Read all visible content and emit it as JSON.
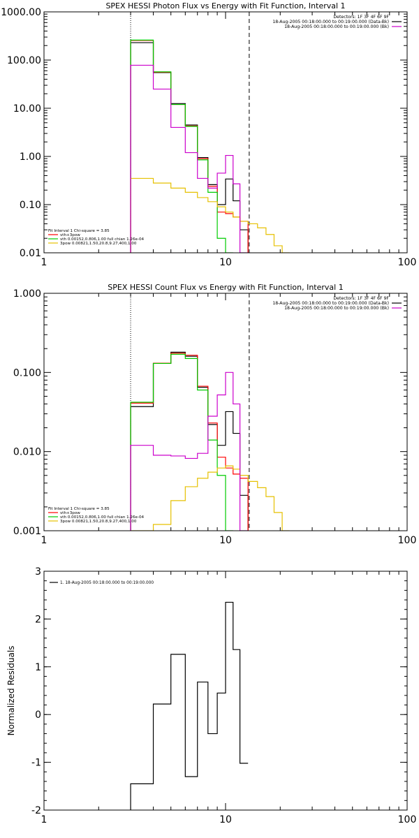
{
  "chart_data": [
    {
      "type": "line",
      "step": true,
      "title": "SPEX HESSI Photon Flux vs Energy with Fit Function, Interval 1",
      "xlabel": "",
      "ylabel": "",
      "x_scale": "log",
      "y_scale": "log",
      "xlim": [
        1,
        100
      ],
      "ylim": [
        0.01,
        1000
      ],
      "x_ticks": [
        1,
        10,
        100
      ],
      "x_tick_labels": [
        "1",
        "10",
        "100"
      ],
      "y_ticks": [
        0.01,
        0.1,
        1,
        10,
        100,
        1000
      ],
      "y_tick_labels": [
        "0.01",
        "0.10",
        "1.00",
        "10.00",
        "100.00",
        "1000.00"
      ],
      "edges": [
        3.0,
        4.0,
        5.0,
        6.0,
        7.0,
        8.0,
        9.0,
        10.0,
        11.0,
        12.0,
        13.3,
        15.0,
        16.7,
        18.5,
        20.5,
        22.5
      ],
      "vlines": [
        {
          "x": 3.0,
          "style": "dotted"
        },
        {
          "x": 13.5,
          "style": "dashed"
        }
      ],
      "legend_top_right": [
        {
          "text": "Detectors: 1F 3F 4F 6F 9F",
          "color": ""
        },
        {
          "text": "18-Aug-2005 00:18:00.000 to 00:19:00.000 (Data-Bk)",
          "color": "#000000"
        },
        {
          "text": "18-Aug-2005 00:18:00.000 to 00:19:00.000 (Bk)",
          "color": "#cc00cc"
        }
      ],
      "legend_bottom_left": [
        {
          "text": "Fit Interval 1    Chi-square = 3.85",
          "color": ""
        },
        {
          "text": "vth+3pow",
          "color": "#ff0000"
        },
        {
          "text": "vth 0.00152,0.806,1.00   full chian 1.26e-04",
          "color": "#00cc00"
        },
        {
          "text": "3pow 0.00821,1.50,20.8,9.27,400,1.00",
          "color": "#e6c000"
        }
      ],
      "series": [
        {
          "name": "Data-Bk",
          "color": "#000000",
          "values": [
            230,
            55,
            12.5,
            4.5,
            0.95,
            0.26,
            0.1,
            0.34,
            0.12,
            0.03
          ]
        },
        {
          "name": "vth+3pow",
          "color": "#ff0000",
          "values": [
            255,
            56,
            12,
            4.3,
            0.9,
            0.24,
            0.07,
            0.065,
            0.055,
            0.045
          ]
        },
        {
          "name": "vth",
          "color": "#00cc00",
          "values": [
            260,
            57,
            12,
            4.2,
            0.85,
            0.18,
            0.02,
            0.0015
          ]
        },
        {
          "name": "3pow",
          "color": "#e6c000",
          "values": [
            0.35,
            0.28,
            0.22,
            0.18,
            0.14,
            0.115,
            0.09,
            0.07,
            0.055,
            0.045,
            0.04,
            0.033,
            0.024,
            0.014,
            0.008
          ]
        },
        {
          "name": "Bk",
          "color": "#cc00cc",
          "values": [
            78,
            25,
            4,
            1.2,
            0.35,
            0.22,
            0.45,
            1.05,
            0.27,
            0.008
          ]
        }
      ]
    },
    {
      "type": "line",
      "step": true,
      "title": "SPEX HESSI Count Flux vs Energy with Fit Function, Interval 1",
      "xlabel": "",
      "ylabel": "",
      "x_scale": "log",
      "y_scale": "log",
      "xlim": [
        1,
        100
      ],
      "ylim": [
        0.001,
        1
      ],
      "x_ticks": [
        1,
        10,
        100
      ],
      "x_tick_labels": [
        "1",
        "10",
        "100"
      ],
      "y_ticks": [
        0.001,
        0.01,
        0.1,
        1
      ],
      "y_tick_labels": [
        "0.001",
        "0.010",
        "0.100",
        "1.000"
      ],
      "edges": [
        3.0,
        4.0,
        5.0,
        6.0,
        7.0,
        8.0,
        9.0,
        10.0,
        11.0,
        12.0,
        13.3,
        15.0,
        16.7,
        18.5,
        20.5,
        22.5
      ],
      "vlines": [
        {
          "x": 3.0,
          "style": "dotted"
        },
        {
          "x": 13.5,
          "style": "dashed"
        }
      ],
      "legend_top_right": [
        {
          "text": "Detectors: 1F 3F 4F 6F 9F",
          "color": ""
        },
        {
          "text": "18-Aug-2005 00:18:00.000 to 00:19:00.000 (Data-Bk)",
          "color": "#000000"
        },
        {
          "text": "18-Aug-2005 00:18:00.000 to 00:19:00.000 (Bk)",
          "color": "#cc00cc"
        }
      ],
      "legend_bottom_left": [
        {
          "text": "Fit Interval 1    Chi-square = 3.85",
          "color": ""
        },
        {
          "text": "vth+3pow",
          "color": "#ff0000"
        },
        {
          "text": "vth 0.00152,0.806,1.00   full chian 1.26e-04",
          "color": "#00cc00"
        },
        {
          "text": "3pow 0.00821,1.50,20.8,9.27,400,1.00",
          "color": "#e6c000"
        }
      ],
      "series": [
        {
          "name": "Data-Bk",
          "color": "#000000",
          "values": [
            0.037,
            0.13,
            0.18,
            0.16,
            0.065,
            0.022,
            0.012,
            0.032,
            0.017,
            0.0028
          ]
        },
        {
          "name": "vth+3pow",
          "color": "#ff0000",
          "values": [
            0.041,
            0.131,
            0.175,
            0.165,
            0.067,
            0.023,
            0.0085,
            0.0062,
            0.0052,
            0.0046
          ]
        },
        {
          "name": "vth",
          "color": "#00cc00",
          "values": [
            0.042,
            0.13,
            0.17,
            0.15,
            0.06,
            0.014,
            0.005,
            0.0008
          ]
        },
        {
          "name": "3pow",
          "color": "#e6c000",
          "values": [
            0.0004,
            0.0012,
            0.0024,
            0.0036,
            0.0046,
            0.0055,
            0.0062,
            0.0066,
            0.006,
            0.005,
            0.0042,
            0.0035,
            0.0027,
            0.0017,
            0.0008
          ]
        },
        {
          "name": "Bk",
          "color": "#cc00cc",
          "values": [
            0.012,
            0.009,
            0.0088,
            0.0082,
            0.0095,
            0.028,
            0.052,
            0.1,
            0.04,
            0.0004
          ]
        }
      ]
    },
    {
      "type": "line",
      "step": true,
      "title": "",
      "xlabel": "",
      "ylabel": "Normalized Residuals",
      "x_scale": "log",
      "y_scale": "linear",
      "xlim": [
        1,
        100
      ],
      "ylim": [
        -2,
        3
      ],
      "x_ticks": [
        1,
        10,
        100
      ],
      "x_tick_labels": [
        "1",
        "10",
        "100"
      ],
      "y_ticks": [
        -2,
        -1,
        0,
        1,
        2,
        3
      ],
      "y_tick_labels": [
        "-2",
        "-1",
        "0",
        "1",
        "2",
        "3"
      ],
      "edges": [
        3.0,
        4.0,
        5.0,
        6.0,
        7.0,
        8.0,
        9.0,
        10.0,
        11.0,
        12.0,
        13.3
      ],
      "legend_top_left": [
        {
          "text": "1. 18-Aug-2005 00:18:00.000 to 00:19:00.000",
          "color": "#000000"
        }
      ],
      "series": [
        {
          "name": "1. 18-Aug-2005 00:18:00.000 to 00:19:00.000",
          "color": "#000000",
          "values": [
            -1.45,
            0.22,
            1.26,
            -1.3,
            0.68,
            -0.4,
            0.45,
            2.35,
            1.36,
            -1.02
          ]
        }
      ]
    }
  ]
}
